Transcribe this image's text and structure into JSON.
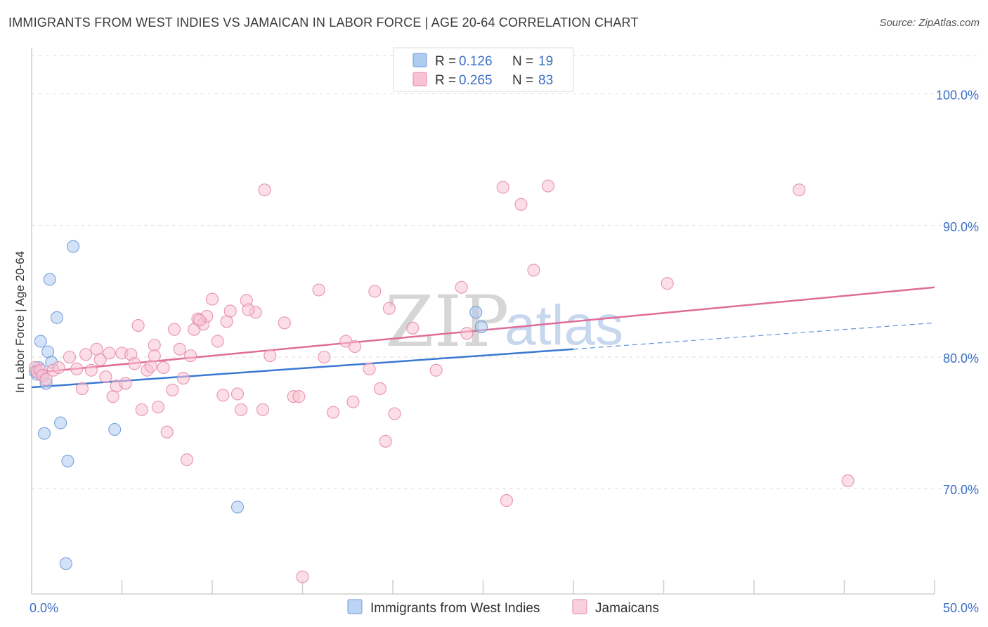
{
  "title": "IMMIGRANTS FROM WEST INDIES VS JAMAICAN IN LABOR FORCE | AGE 20-64 CORRELATION CHART",
  "source": "Source: ZipAtlas.com",
  "watermark": {
    "zip": "ZIP",
    "atlas": "atlas"
  },
  "legend": {
    "r_label": "R =",
    "n_label": "N =",
    "rows": [
      {
        "r": "0.126",
        "n": "19",
        "color": "#aecbf0",
        "stroke": "#6f9ad8"
      },
      {
        "r": "0.265",
        "n": "83",
        "color": "#f9c3d3",
        "stroke": "#e68aa8"
      }
    ]
  },
  "bottom_legend": [
    {
      "label": "Immigrants from West Indies",
      "color": "#bcd4f4",
      "stroke": "#6f9ad8"
    },
    {
      "label": "Jamaicans",
      "color": "#fbd0dd",
      "stroke": "#e68aa8"
    }
  ],
  "chart_data": {
    "type": "scatter",
    "xlabel": "",
    "ylabel": "In Labor Force | Age 20-64",
    "xlim": [
      0,
      50
    ],
    "ylim": [
      62,
      103.5
    ],
    "x_tick_labels": [
      {
        "value": 0,
        "label": "0.0%"
      },
      {
        "value": 50,
        "label": "50.0%"
      }
    ],
    "y_tick_labels": [
      {
        "value": 100,
        "label": "100.0%"
      },
      {
        "value": 90,
        "label": "90.0%"
      },
      {
        "value": 80,
        "label": "80.0%"
      },
      {
        "value": 70,
        "label": "70.0%"
      }
    ],
    "x_minor_ticks": [
      0,
      5,
      10,
      15,
      20,
      25,
      30,
      35,
      40,
      45,
      50
    ],
    "grid": true,
    "series": [
      {
        "name": "Immigrants from West Indies",
        "color": "#aecbf0",
        "stroke": "#6f9ad8",
        "line_color": "#3a78d2",
        "trend": {
          "x0": 0,
          "y0": 77.7,
          "x1": 30,
          "y1": 80.6
        },
        "trend_dashed": {
          "x0": 30,
          "y0": 80.6,
          "x1": 50,
          "y1": 82.6
        },
        "points": [
          [
            0.2,
            78.9
          ],
          [
            0.3,
            78.7
          ],
          [
            0.4,
            79.2
          ],
          [
            0.6,
            78.6
          ],
          [
            0.5,
            81.2
          ],
          [
            0.8,
            78.0
          ],
          [
            0.9,
            80.4
          ],
          [
            1.0,
            85.9
          ],
          [
            1.1,
            79.6
          ],
          [
            1.4,
            83.0
          ],
          [
            1.6,
            75.0
          ],
          [
            0.7,
            74.2
          ],
          [
            2.0,
            72.1
          ],
          [
            2.3,
            88.4
          ],
          [
            4.6,
            74.5
          ],
          [
            11.4,
            68.6
          ],
          [
            1.9,
            64.3
          ],
          [
            24.6,
            83.4
          ],
          [
            24.9,
            82.3
          ]
        ]
      },
      {
        "name": "Jamaicans",
        "color": "#f9c3d3",
        "stroke": "#e68aa8",
        "line_color": "#e06d98",
        "trend": {
          "x0": 0,
          "y0": 78.8,
          "x1": 50,
          "y1": 85.3
        },
        "points": [
          [
            0.2,
            79.2
          ],
          [
            0.3,
            78.9
          ],
          [
            0.5,
            79.0
          ],
          [
            0.6,
            78.6
          ],
          [
            0.8,
            78.3
          ],
          [
            1.2,
            79.0
          ],
          [
            1.5,
            79.2
          ],
          [
            2.1,
            80.0
          ],
          [
            2.5,
            79.1
          ],
          [
            2.8,
            77.6
          ],
          [
            3.0,
            80.2
          ],
          [
            3.3,
            79.0
          ],
          [
            3.6,
            80.6
          ],
          [
            3.8,
            79.8
          ],
          [
            4.1,
            78.5
          ],
          [
            4.3,
            80.3
          ],
          [
            4.5,
            77.0
          ],
          [
            4.7,
            77.8
          ],
          [
            5.0,
            80.3
          ],
          [
            5.2,
            78.0
          ],
          [
            5.5,
            80.2
          ],
          [
            5.7,
            79.5
          ],
          [
            5.9,
            82.4
          ],
          [
            6.1,
            76.0
          ],
          [
            6.4,
            79.0
          ],
          [
            6.6,
            79.3
          ],
          [
            6.8,
            80.9
          ],
          [
            7.0,
            76.2
          ],
          [
            7.3,
            79.2
          ],
          [
            7.5,
            74.3
          ],
          [
            7.8,
            77.5
          ],
          [
            7.9,
            82.1
          ],
          [
            8.2,
            80.6
          ],
          [
            8.4,
            78.4
          ],
          [
            8.6,
            72.2
          ],
          [
            8.8,
            80.1
          ],
          [
            9.0,
            82.1
          ],
          [
            9.2,
            82.9
          ],
          [
            9.5,
            82.5
          ],
          [
            9.7,
            83.1
          ],
          [
            10.0,
            84.4
          ],
          [
            10.3,
            81.2
          ],
          [
            10.6,
            77.1
          ],
          [
            10.8,
            82.7
          ],
          [
            11.0,
            83.5
          ],
          [
            11.4,
            77.2
          ],
          [
            11.6,
            76.0
          ],
          [
            11.9,
            84.3
          ],
          [
            12.4,
            83.4
          ],
          [
            12.8,
            76.0
          ],
          [
            12.9,
            92.7
          ],
          [
            13.2,
            80.1
          ],
          [
            14.0,
            82.6
          ],
          [
            14.5,
            77.0
          ],
          [
            14.8,
            77.0
          ],
          [
            15.0,
            63.3
          ],
          [
            15.9,
            85.1
          ],
          [
            16.7,
            75.8
          ],
          [
            17.4,
            81.2
          ],
          [
            17.9,
            80.8
          ],
          [
            17.8,
            76.6
          ],
          [
            18.7,
            79.1
          ],
          [
            19.0,
            85.0
          ],
          [
            19.3,
            77.6
          ],
          [
            19.6,
            73.6
          ],
          [
            19.8,
            83.7
          ],
          [
            20.1,
            75.7
          ],
          [
            21.1,
            82.2
          ],
          [
            22.4,
            79.0
          ],
          [
            23.8,
            85.3
          ],
          [
            24.1,
            81.8
          ],
          [
            26.1,
            92.9
          ],
          [
            26.3,
            69.1
          ],
          [
            27.1,
            91.6
          ],
          [
            27.8,
            86.6
          ],
          [
            28.6,
            93.0
          ],
          [
            35.2,
            85.6
          ],
          [
            42.5,
            92.7
          ],
          [
            45.2,
            70.6
          ],
          [
            9.3,
            82.8
          ],
          [
            12.0,
            83.6
          ],
          [
            16.2,
            80.0
          ],
          [
            6.8,
            80.1
          ]
        ]
      }
    ]
  }
}
